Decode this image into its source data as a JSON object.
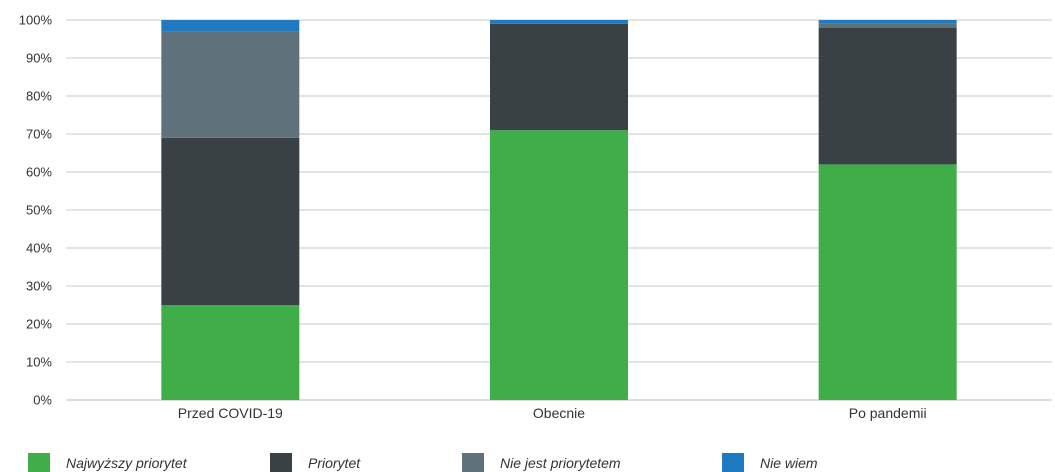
{
  "chart_data": {
    "type": "bar",
    "stacked": true,
    "categories": [
      "Przed COVID-19",
      "Obecnie",
      "Po pandemii"
    ],
    "series": [
      {
        "name": "Najwyższy priorytet",
        "values": [
          25,
          71,
          62
        ],
        "color": "#3fae49"
      },
      {
        "name": "Priorytet",
        "values": [
          44,
          28,
          36
        ],
        "color": "#3a4144"
      },
      {
        "name": "Nie jest priorytetem",
        "values": [
          28,
          0,
          1
        ],
        "color": "#5f727c"
      },
      {
        "name": "Nie wiem",
        "values": [
          3,
          1,
          1
        ],
        "color": "#1f7ac2"
      }
    ],
    "yticks": [
      "0%",
      "10%",
      "20%",
      "30%",
      "40%",
      "50%",
      "60%",
      "70%",
      "80%",
      "90%",
      "100%"
    ],
    "ylim": [
      0,
      100
    ],
    "grid": true,
    "legend_position": "bottom"
  }
}
